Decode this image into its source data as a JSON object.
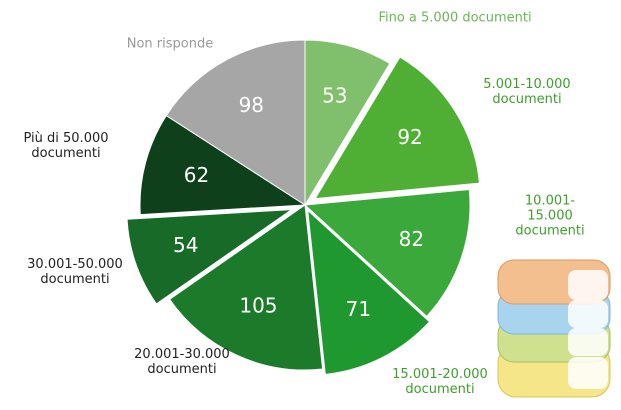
{
  "chart_data": {
    "type": "pie",
    "categories": [
      "Fino a 5.000 documenti",
      "5.001-10.000\ndocumenti",
      "10.001-15.000\ndocumenti",
      "15.001-20.000\ndocumenti",
      "20.001-30.000\ndocumenti",
      "30.001-50.000\ndocumenti",
      "Più di 50.000\ndocumenti",
      "Non risponde"
    ],
    "values": [
      53,
      92,
      82,
      71,
      105,
      54,
      62,
      98
    ],
    "colors": [
      "#80c06c",
      "#4eaf34",
      "#3aa83a",
      "#1f992f",
      "#1b7b2b",
      "#176a27",
      "#0e401b",
      "#a6a6a6"
    ]
  }
}
